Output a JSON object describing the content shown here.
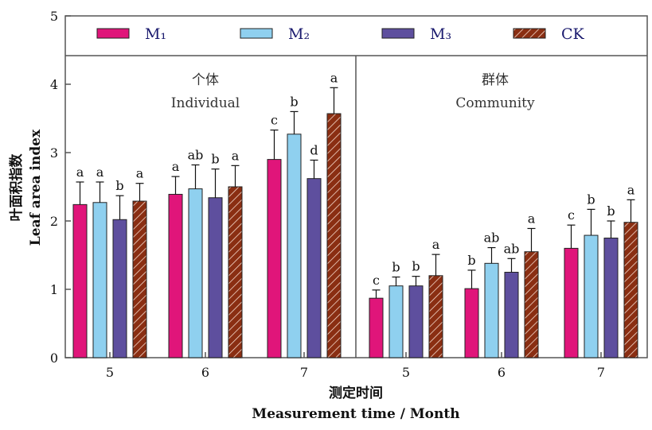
{
  "chart_data": {
    "type": "bar",
    "ylabel_cn": "叶面积指数",
    "ylabel_en": "Leaf area index",
    "xlabel_cn": "测定时间",
    "xlabel_en": "Measurement time / Month",
    "ylim": [
      0,
      5
    ],
    "yticks": [
      "0",
      "1",
      "2",
      "3",
      "4",
      "5"
    ],
    "legend": [
      {
        "name": "M₁",
        "color": "#e0157a",
        "pattern": "solid"
      },
      {
        "name": "M₂",
        "color": "#8fd0ef",
        "pattern": "solid"
      },
      {
        "name": "M₃",
        "color": "#5e4f9e",
        "pattern": "solid"
      },
      {
        "name": "CK",
        "color": "#8a2e12",
        "pattern": "hatch"
      }
    ],
    "panels": [
      {
        "title_cn": "个体",
        "title_en": "Individual",
        "categories": [
          "5",
          "6",
          "7"
        ],
        "series": [
          {
            "values": [
              2.24,
              2.39,
              2.9
            ],
            "errors": [
              0.33,
              0.26,
              0.43
            ],
            "labels": [
              "a",
              "a",
              "c"
            ]
          },
          {
            "values": [
              2.27,
              2.47,
              3.27
            ],
            "errors": [
              0.3,
              0.35,
              0.33
            ],
            "labels": [
              "a",
              "ab",
              "b"
            ]
          },
          {
            "values": [
              2.02,
              2.34,
              2.62
            ],
            "errors": [
              0.35,
              0.42,
              0.27
            ],
            "labels": [
              "b",
              "b",
              "d"
            ]
          },
          {
            "values": [
              2.29,
              2.5,
              3.57
            ],
            "errors": [
              0.26,
              0.31,
              0.38
            ],
            "labels": [
              "a",
              "a",
              "a"
            ]
          }
        ]
      },
      {
        "title_cn": "群体",
        "title_en": "Community",
        "categories": [
          "5",
          "6",
          "7"
        ],
        "series": [
          {
            "values": [
              0.87,
              1.01,
              1.6
            ],
            "errors": [
              0.12,
              0.27,
              0.34
            ],
            "labels": [
              "c",
              "b",
              "c"
            ]
          },
          {
            "values": [
              1.05,
              1.38,
              1.79
            ],
            "errors": [
              0.13,
              0.23,
              0.38
            ],
            "labels": [
              "b",
              "ab",
              "b"
            ]
          },
          {
            "values": [
              1.05,
              1.25,
              1.75
            ],
            "errors": [
              0.14,
              0.2,
              0.25
            ],
            "labels": [
              "b",
              "ab",
              "b"
            ]
          },
          {
            "values": [
              1.2,
              1.55,
              1.98
            ],
            "errors": [
              0.31,
              0.34,
              0.33
            ],
            "labels": [
              "a",
              "a",
              "a"
            ]
          }
        ]
      }
    ],
    "grid": false,
    "legend_position": "top"
  }
}
